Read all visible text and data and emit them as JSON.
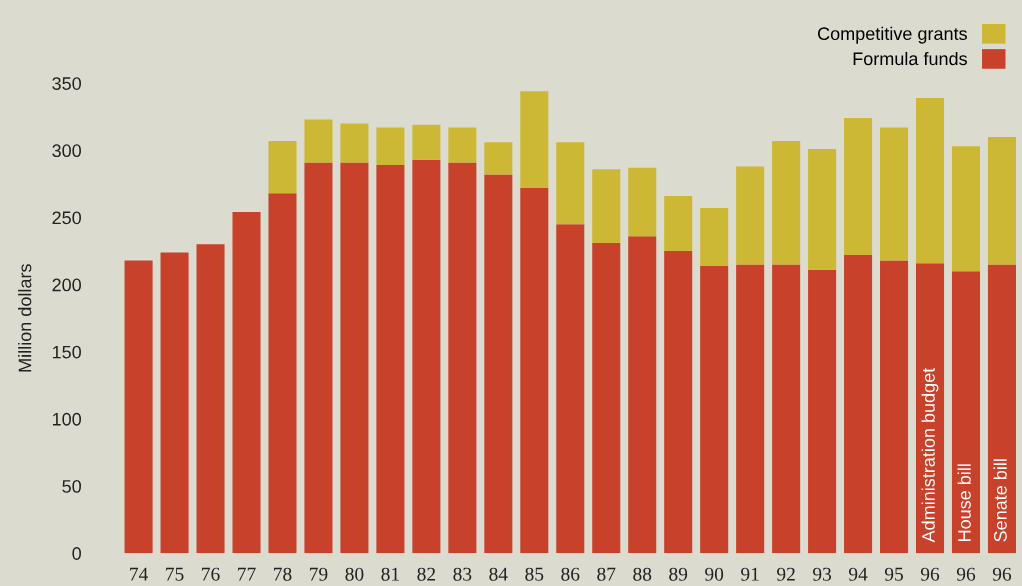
{
  "chart_data": {
    "type": "bar",
    "stacked": true,
    "ylabel": "Million dollars",
    "categories": [
      "74",
      "75",
      "76",
      "77",
      "78",
      "79",
      "80",
      "81",
      "82",
      "83",
      "84",
      "85",
      "86",
      "87",
      "88",
      "89",
      "90",
      "91",
      "92",
      "93",
      "94",
      "95",
      "96",
      "96",
      "96"
    ],
    "series": [
      {
        "name": "Formula funds",
        "color": "#c8422b",
        "values": [
          218,
          224,
          230,
          254,
          268,
          291,
          291,
          289,
          293,
          291,
          282,
          272,
          245,
          231,
          236,
          225,
          214,
          215,
          215,
          211,
          222,
          218,
          216,
          210,
          215
        ]
      },
      {
        "name": "Competitive grants",
        "color": "#cdb835",
        "values": [
          0,
          0,
          0,
          0,
          39,
          32,
          29,
          28,
          26,
          26,
          24,
          72,
          61,
          55,
          51,
          41,
          43,
          73,
          92,
          90,
          102,
          99,
          123,
          93,
          95
        ]
      }
    ],
    "ylim": [
      0,
      350
    ],
    "yticks": [
      0,
      50,
      100,
      150,
      200,
      250,
      300,
      350
    ],
    "legend": "top right",
    "grid": false,
    "annotations": [
      "Administration budget",
      "House bill",
      "Senate bill"
    ]
  }
}
